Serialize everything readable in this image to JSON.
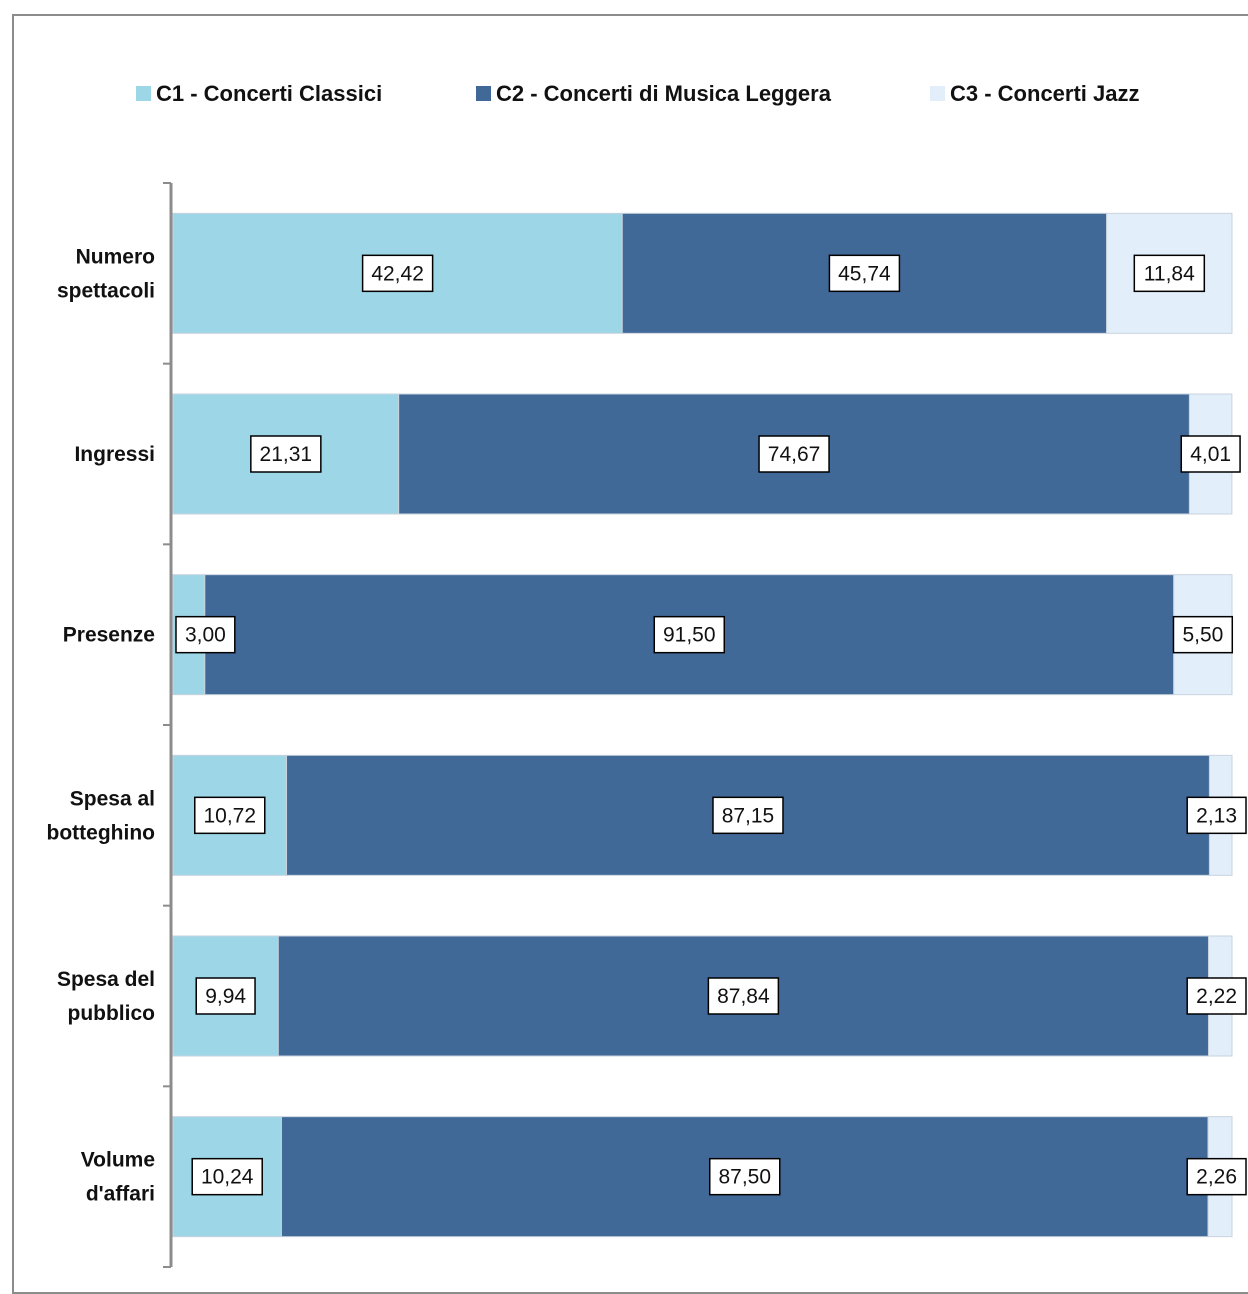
{
  "chart_data": {
    "type": "bar",
    "orientation": "horizontal",
    "stacked": "percent",
    "categories": [
      [
        "Numero",
        "spettacoli"
      ],
      [
        "Ingressi"
      ],
      [
        "Presenze"
      ],
      [
        "Spesa al",
        "botteghino"
      ],
      [
        "Spesa del",
        "pubblico"
      ],
      [
        "Volume",
        "d'affari"
      ]
    ],
    "series": [
      {
        "name": "C1 - Concerti Classici",
        "color": "#9dd6e6",
        "values": [
          42.42,
          21.31,
          3.0,
          10.72,
          9.94,
          10.24
        ],
        "labels": [
          "42,42",
          "21,31",
          "3,00",
          "10,72",
          "9,94",
          "10,24"
        ]
      },
      {
        "name": "C2 - Concerti di Musica Leggera",
        "color": "#416998",
        "values": [
          45.74,
          74.67,
          91.5,
          87.15,
          87.84,
          87.5
        ],
        "labels": [
          "45,74",
          "74,67",
          "91,50",
          "87,15",
          "87,84",
          "87,50"
        ]
      },
      {
        "name": "C3 - Concerti Jazz",
        "color": "#e3eefb",
        "values": [
          11.84,
          4.01,
          5.5,
          2.13,
          2.22,
          2.26
        ],
        "labels": [
          "11,84",
          "4,01",
          "5,50",
          "2,13",
          "2,22",
          "2,26"
        ]
      }
    ],
    "xlim": [
      0,
      100
    ],
    "legend_position": "top",
    "grid": false
  }
}
